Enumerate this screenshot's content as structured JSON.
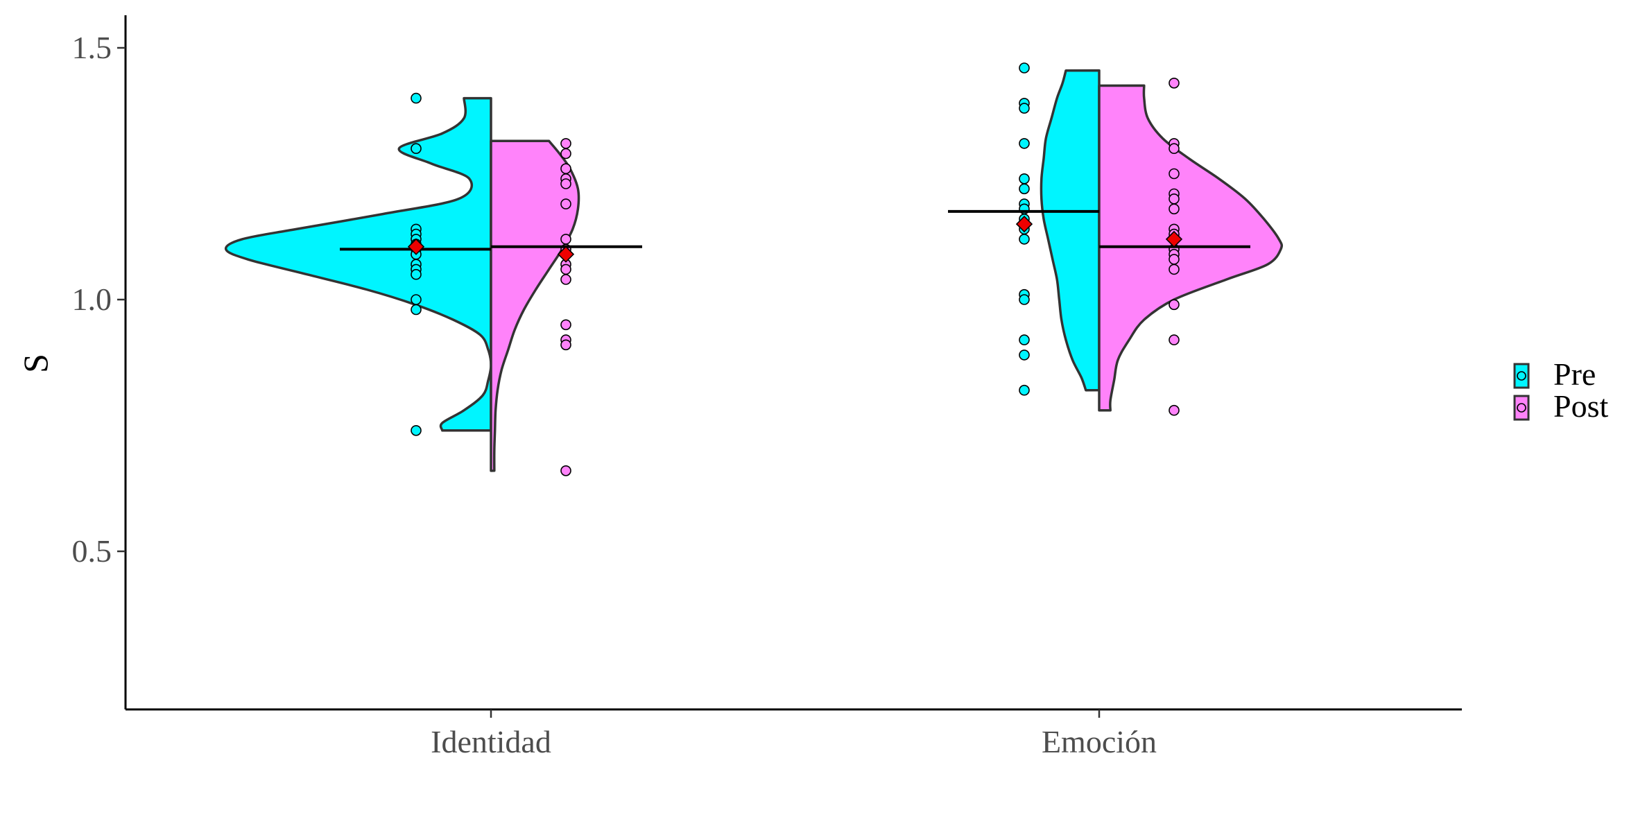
{
  "chart_data": {
    "type": "raincloud",
    "title": "",
    "xlabel": "",
    "ylabel": "S",
    "ylim": [
      0.2,
      1.55
    ],
    "yticks": [
      0.5,
      1.0,
      1.5
    ],
    "ytick_labels": [
      "0.5",
      "1.0",
      "1.5"
    ],
    "categories": [
      "Identidad",
      "Emoción"
    ],
    "grid": false,
    "legend": {
      "position": "right",
      "entries": [
        "Pre",
        "Post"
      ]
    },
    "colors": {
      "Pre": "#00F5FF",
      "Post": "#FF83FA",
      "mean_marker": "#EE0000",
      "outline": "#333333"
    },
    "groups": [
      {
        "category": "Identidad",
        "pre": {
          "points": [
            1.4,
            1.3,
            1.14,
            1.13,
            1.12,
            1.11,
            1.1,
            1.09,
            1.07,
            1.06,
            1.05,
            1.0,
            0.98,
            0.74
          ],
          "median": 1.1,
          "mean": 1.105,
          "density": [
            [
              1.4,
              0.1
            ],
            [
              1.36,
              0.1
            ],
            [
              1.33,
              0.18
            ],
            [
              1.3,
              0.34
            ],
            [
              1.27,
              0.22
            ],
            [
              1.24,
              0.08
            ],
            [
              1.2,
              0.12
            ],
            [
              1.17,
              0.4
            ],
            [
              1.14,
              0.72
            ],
            [
              1.12,
              0.92
            ],
            [
              1.1,
              0.98
            ],
            [
              1.08,
              0.9
            ],
            [
              1.05,
              0.68
            ],
            [
              1.02,
              0.46
            ],
            [
              0.99,
              0.28
            ],
            [
              0.96,
              0.14
            ],
            [
              0.93,
              0.04
            ],
            [
              0.9,
              0.01
            ],
            [
              0.87,
              0.0
            ],
            [
              0.84,
              0.01
            ],
            [
              0.81,
              0.03
            ],
            [
              0.78,
              0.1
            ],
            [
              0.755,
              0.18
            ],
            [
              0.74,
              0.18
            ]
          ]
        },
        "post": {
          "points": [
            1.31,
            1.29,
            1.26,
            1.24,
            1.23,
            1.19,
            1.12,
            1.1,
            1.09,
            1.07,
            1.06,
            1.04,
            0.95,
            0.92,
            0.91,
            0.66
          ],
          "median": 1.105,
          "mean": 1.09,
          "density": [
            [
              1.315,
              0.44
            ],
            [
              1.29,
              0.52
            ],
            [
              1.26,
              0.6
            ],
            [
              1.22,
              0.66
            ],
            [
              1.18,
              0.66
            ],
            [
              1.14,
              0.62
            ],
            [
              1.1,
              0.54
            ],
            [
              1.06,
              0.44
            ],
            [
              1.02,
              0.34
            ],
            [
              0.98,
              0.25
            ],
            [
              0.94,
              0.18
            ],
            [
              0.9,
              0.13
            ],
            [
              0.86,
              0.08
            ],
            [
              0.82,
              0.05
            ],
            [
              0.78,
              0.035
            ],
            [
              0.74,
              0.03
            ],
            [
              0.7,
              0.025
            ],
            [
              0.66,
              0.025
            ]
          ]
        }
      },
      {
        "category": "Emoción",
        "pre": {
          "points": [
            1.46,
            1.39,
            1.38,
            1.31,
            1.24,
            1.22,
            1.19,
            1.18,
            1.16,
            1.14,
            1.12,
            1.01,
            1.0,
            0.92,
            0.89,
            0.82
          ],
          "median": 1.175,
          "mean": 1.15,
          "density": [
            [
              1.455,
              0.3
            ],
            [
              1.43,
              0.33
            ],
            [
              1.4,
              0.38
            ],
            [
              1.36,
              0.43
            ],
            [
              1.32,
              0.48
            ],
            [
              1.28,
              0.5
            ],
            [
              1.24,
              0.52
            ],
            [
              1.2,
              0.52
            ],
            [
              1.16,
              0.5
            ],
            [
              1.12,
              0.46
            ],
            [
              1.08,
              0.42
            ],
            [
              1.04,
              0.38
            ],
            [
              1.0,
              0.36
            ],
            [
              0.96,
              0.34
            ],
            [
              0.92,
              0.3
            ],
            [
              0.88,
              0.24
            ],
            [
              0.845,
              0.16
            ],
            [
              0.82,
              0.12
            ]
          ]
        },
        "post": {
          "points": [
            1.43,
            1.31,
            1.3,
            1.25,
            1.21,
            1.2,
            1.18,
            1.14,
            1.13,
            1.12,
            1.1,
            1.09,
            1.08,
            1.06,
            0.99,
            0.92,
            0.78
          ],
          "median": 1.105,
          "mean": 1.12,
          "density": [
            [
              1.425,
              0.24
            ],
            [
              1.4,
              0.24
            ],
            [
              1.36,
              0.26
            ],
            [
              1.32,
              0.34
            ],
            [
              1.28,
              0.48
            ],
            [
              1.24,
              0.64
            ],
            [
              1.2,
              0.78
            ],
            [
              1.16,
              0.88
            ],
            [
              1.12,
              0.96
            ],
            [
              1.1,
              0.97
            ],
            [
              1.07,
              0.9
            ],
            [
              1.04,
              0.68
            ],
            [
              1.0,
              0.4
            ],
            [
              0.96,
              0.24
            ],
            [
              0.92,
              0.16
            ],
            [
              0.88,
              0.1
            ],
            [
              0.84,
              0.08
            ],
            [
              0.8,
              0.06
            ],
            [
              0.78,
              0.06
            ]
          ]
        }
      }
    ]
  }
}
